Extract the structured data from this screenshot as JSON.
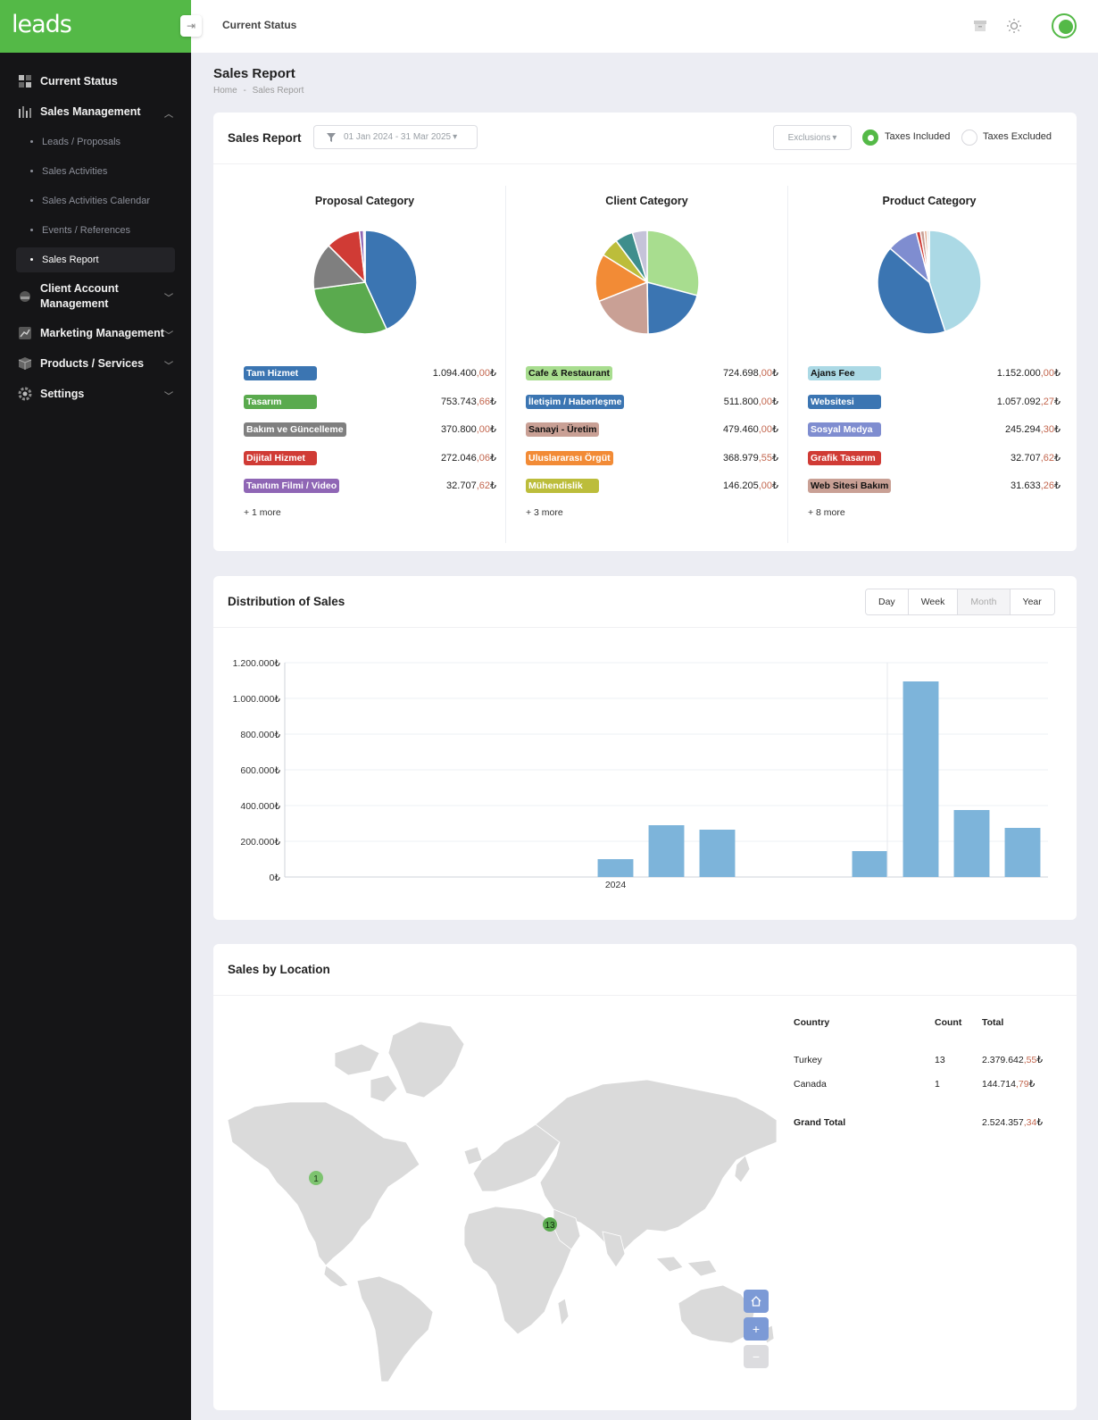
{
  "app": {
    "logo": "leads"
  },
  "topbar": {
    "title": "Current Status"
  },
  "sidebar": {
    "items": [
      {
        "label": "Current Status"
      },
      {
        "label": "Sales Management"
      },
      {
        "label": "Client Account Management"
      },
      {
        "label": "Marketing Management"
      },
      {
        "label": "Products / Services"
      },
      {
        "label": "Settings"
      }
    ],
    "sub_items": [
      "Leads / Proposals",
      "Sales Activities",
      "Sales Activities Calendar",
      "Events / References",
      "Sales Report"
    ]
  },
  "page": {
    "title": "Sales Report",
    "breadcrumb": [
      "Home",
      "Sales Report"
    ],
    "breadcrumb_sep": "-"
  },
  "report": {
    "title": "Sales Report",
    "date_range": "01 Jan 2024 - 31 Mar 2025",
    "exclusions_label": "Exclusions",
    "tax_options": [
      {
        "label": "Taxes Included",
        "selected": true
      },
      {
        "label": "Taxes Excluded",
        "selected": false
      }
    ],
    "accent_color": "#54b947"
  },
  "categories": [
    {
      "title": "Proposal Category",
      "more": "+ 1 more",
      "items": [
        {
          "label": "Tam Hizmet",
          "int": "1.094.400",
          "dec": ",00",
          "cur": "₺",
          "color": "#3b75b2",
          "text": "#fff"
        },
        {
          "label": "Tasarım",
          "int": "753.743",
          "dec": ",66",
          "cur": "₺",
          "color": "#5aaa4e",
          "text": "#fff"
        },
        {
          "label": "Bakım ve Güncelleme",
          "int": "370.800",
          "dec": ",00",
          "cur": "₺",
          "color": "#7f7f7f",
          "text": "#fff"
        },
        {
          "label": "Dijital Hizmet",
          "int": "272.046",
          "dec": ",06",
          "cur": "₺",
          "color": "#d03b35",
          "text": "#fff"
        },
        {
          "label": "Tanıtım Filmi / Video",
          "int": "32.707",
          "dec": ",62",
          "cur": "₺",
          "color": "#8f66b5",
          "text": "#fff"
        }
      ],
      "pie": [
        {
          "value": 1094400,
          "color": "#3b75b2"
        },
        {
          "value": 753744,
          "color": "#5aaa4e"
        },
        {
          "value": 370800,
          "color": "#7f7f7f"
        },
        {
          "value": 272046,
          "color": "#d03b35"
        },
        {
          "value": 32708,
          "color": "#8f66b5"
        },
        {
          "value": 12000,
          "color": "#c7c7c7"
        }
      ]
    },
    {
      "title": "Client Category",
      "more": "+ 3 more",
      "items": [
        {
          "label": "Cafe & Restaurant",
          "int": "724.698",
          "dec": ",00",
          "cur": "₺",
          "color": "#a8dd8f",
          "text": "#111"
        },
        {
          "label": "İletişim / Haberleşme",
          "int": "511.800",
          "dec": ",00",
          "cur": "₺",
          "color": "#3b75b2",
          "text": "#fff"
        },
        {
          "label": "Sanayi - Üretim",
          "int": "479.460",
          "dec": ",00",
          "cur": "₺",
          "color": "#c9a095",
          "text": "#111"
        },
        {
          "label": "Uluslararası Örgüt",
          "int": "368.979",
          "dec": ",55",
          "cur": "₺",
          "color": "#f28b36",
          "text": "#fff"
        },
        {
          "label": "Mühendislik",
          "int": "146.205",
          "dec": ",00",
          "cur": "₺",
          "color": "#bcbd3b",
          "text": "#fff"
        }
      ],
      "pie": [
        {
          "value": 724698,
          "color": "#a8dd8f"
        },
        {
          "value": 511800,
          "color": "#3b75b2"
        },
        {
          "value": 479460,
          "color": "#c9a095"
        },
        {
          "value": 368980,
          "color": "#f28b36"
        },
        {
          "value": 146205,
          "color": "#bcbd3b"
        },
        {
          "value": 140000,
          "color": "#3e8e8c"
        },
        {
          "value": 115000,
          "color": "#c5c3d9"
        }
      ]
    },
    {
      "title": "Product Category",
      "more": "+ 8 more",
      "items": [
        {
          "label": "Ajans Fee",
          "int": "1.152.000",
          "dec": ",00",
          "cur": "₺",
          "color": "#abd9e5",
          "text": "#111"
        },
        {
          "label": "Websitesi",
          "int": "1.057.092",
          "dec": ",27",
          "cur": "₺",
          "color": "#3b75b2",
          "text": "#fff"
        },
        {
          "label": "Sosyal Medya",
          "int": "245.294",
          "dec": ",30",
          "cur": "₺",
          "color": "#7f8dd0",
          "text": "#fff"
        },
        {
          "label": "Grafik Tasarım",
          "int": "32.707",
          "dec": ",62",
          "cur": "₺",
          "color": "#d03b35",
          "text": "#fff"
        },
        {
          "label": "Web Sitesi Bakım",
          "int": "31.633",
          "dec": ",26",
          "cur": "₺",
          "color": "#c9a095",
          "text": "#111"
        }
      ],
      "pie": [
        {
          "value": 1152000,
          "color": "#abd9e5"
        },
        {
          "value": 1057092,
          "color": "#3b75b2"
        },
        {
          "value": 245294,
          "color": "#7f8dd0"
        },
        {
          "value": 32708,
          "color": "#d03b35"
        },
        {
          "value": 31633,
          "color": "#c9a095"
        },
        {
          "value": 22000,
          "color": "#e0a488"
        },
        {
          "value": 18000,
          "color": "#d8d8d8"
        }
      ]
    }
  ],
  "distribution": {
    "title": "Distribution of Sales",
    "periods": [
      {
        "label": "Day",
        "active": false
      },
      {
        "label": "Week",
        "active": false
      },
      {
        "label": "Month",
        "active": true
      },
      {
        "label": "Year",
        "active": false
      }
    ]
  },
  "chart_data": {
    "type": "bar",
    "title": "Distribution of Sales",
    "xlabel": "",
    "ylabel": "",
    "ylim": [
      0,
      1200000
    ],
    "y_ticks": [
      "0₺",
      "200.000₺",
      "400.000₺",
      "600.000₺",
      "800.000₺",
      "1.000.000₺",
      "1.200.000₺"
    ],
    "x_tick_labels": [
      "2024"
    ],
    "grid": true,
    "color": "#7db4da",
    "x": [
      "2024-01",
      "2024-02",
      "2024-03",
      "2024-04",
      "2024-05",
      "2024-06",
      "2024-07",
      "2024-08",
      "2024-09",
      "2024-10",
      "2024-11",
      "2024-12",
      "2025-01",
      "2025-02",
      "2025-03"
    ],
    "values": [
      0,
      0,
      0,
      0,
      0,
      0,
      100000,
      290000,
      265000,
      0,
      0,
      145000,
      1095000,
      375000,
      275000
    ]
  },
  "location": {
    "title": "Sales by Location",
    "headers": {
      "country": "Country",
      "count": "Count",
      "total": "Total"
    },
    "rows": [
      {
        "country": "Turkey",
        "count": "13",
        "int": "2.379.642",
        "dec": ",55",
        "cur": "₺"
      },
      {
        "country": "Canada",
        "count": "1",
        "int": "144.714",
        "dec": ",79",
        "cur": "₺"
      }
    ],
    "grand_total": {
      "label": "Grand Total",
      "int": "2.524.357",
      "dec": ",34",
      "cur": "₺"
    },
    "markers": [
      {
        "label": "1",
        "country": "Canada"
      },
      {
        "label": "13",
        "country": "Turkey"
      }
    ],
    "map_controls": [
      "home-icon",
      "zoom-in",
      "zoom-out"
    ],
    "plus": "+",
    "minus": "−"
  }
}
